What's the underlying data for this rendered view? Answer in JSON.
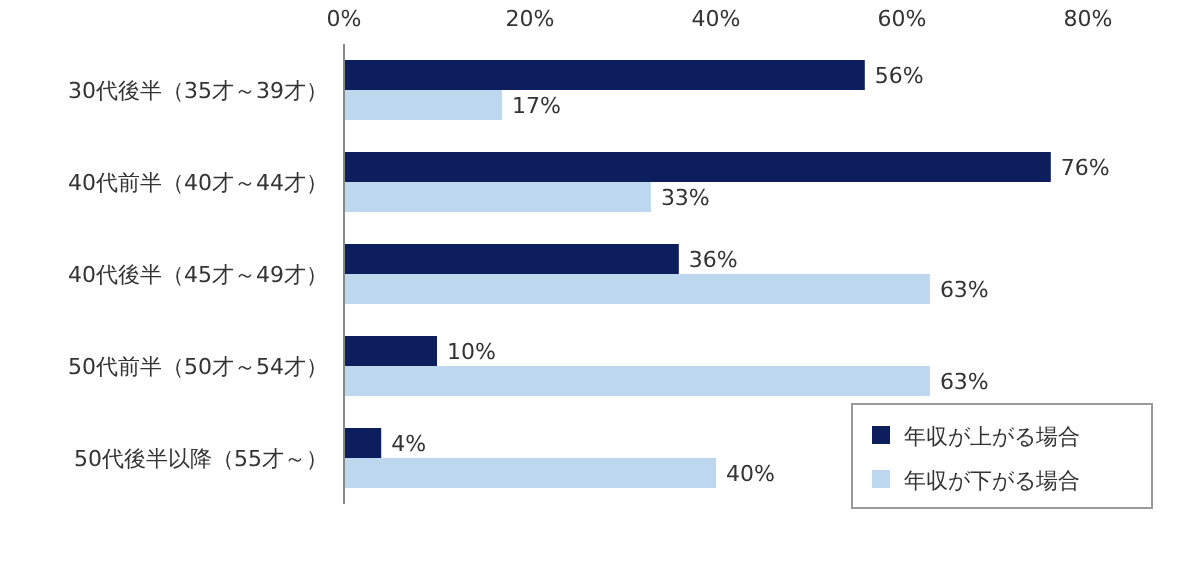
{
  "chart_data": {
    "type": "bar",
    "orientation": "horizontal",
    "categories": [
      "30代後半（35才～39才）",
      "40代前半（40才～44才）",
      "40代後半（45才～49才）",
      "50代前半（50才～54才）",
      "50代後半以降（55才～）"
    ],
    "series": [
      {
        "name": "年収が上がる場合",
        "color": "#0c1e5b",
        "values": [
          56,
          76,
          36,
          10,
          4
        ],
        "value_labels": [
          "56%",
          "76%",
          "36%",
          "10%",
          "4%"
        ]
      },
      {
        "name": "年収が下がる場合",
        "color": "#bdd7ee",
        "values": [
          17,
          33,
          63,
          63,
          40
        ],
        "value_labels": [
          "17%",
          "33%",
          "63%",
          "63%",
          "40%"
        ]
      }
    ],
    "xlim": [
      0,
      80
    ],
    "xticks": [
      {
        "value": 0,
        "label": "0%"
      },
      {
        "value": 20,
        "label": "20%"
      },
      {
        "value": 40,
        "label": "40%"
      },
      {
        "value": 60,
        "label": "60%"
      },
      {
        "value": 80,
        "label": "80%"
      }
    ],
    "legend": "bottom right"
  }
}
